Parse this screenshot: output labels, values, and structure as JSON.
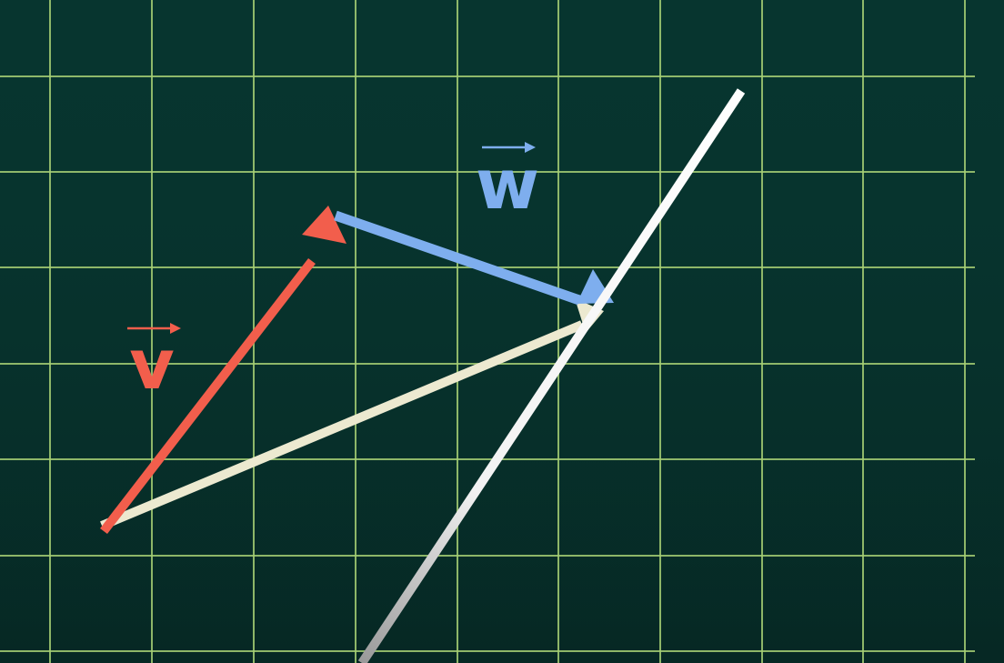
{
  "scene": {
    "background_color": "#07352f",
    "grid_color": "#a6cf74"
  },
  "vectors": {
    "v": {
      "label": "v",
      "color": "#f25e4c"
    },
    "w": {
      "label": "w",
      "color": "#7eaeee"
    },
    "sum": {
      "color": "#ece9d0"
    }
  },
  "line": {
    "color": "#ffffff"
  }
}
